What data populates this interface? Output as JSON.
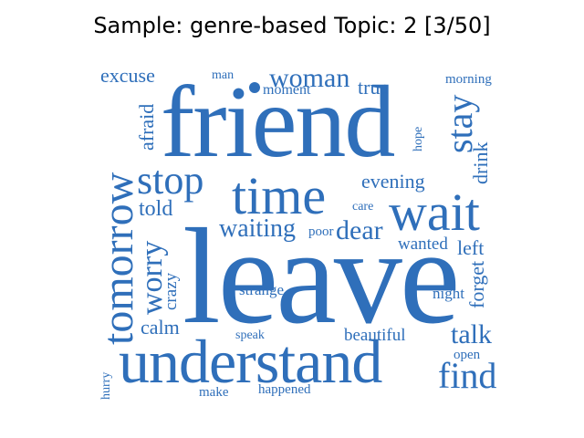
{
  "title": "Sample: genre-based Topic: 2 [3/50]",
  "color": "#2f6fba",
  "words": {
    "friend": "friend",
    "leave": "leave",
    "understand": "understand",
    "tomorrow": "tomorrow",
    "time": "time",
    "wait": "wait",
    "stop": "stop",
    "woman": "woman",
    "excuse": "excuse",
    "man": "man",
    "moment": "moment",
    "true": "true",
    "morning": "morning",
    "stay": "stay",
    "drink": "drink",
    "hope": "hope",
    "afraid": "afraid",
    "evening": "evening",
    "told": "told",
    "care": "care",
    "waiting": "waiting",
    "poor": "poor",
    "dear": "dear",
    "wanted": "wanted",
    "left": "left",
    "worry": "worry",
    "crazy": "crazy",
    "strange": "strange",
    "forget": "forget",
    "night": "night",
    "calm": "calm",
    "talk": "talk",
    "speak": "speak",
    "beautiful": "beautiful",
    "open": "open",
    "find": "find",
    "hurry": "hurry",
    "make": "make",
    "happened": "happened"
  }
}
